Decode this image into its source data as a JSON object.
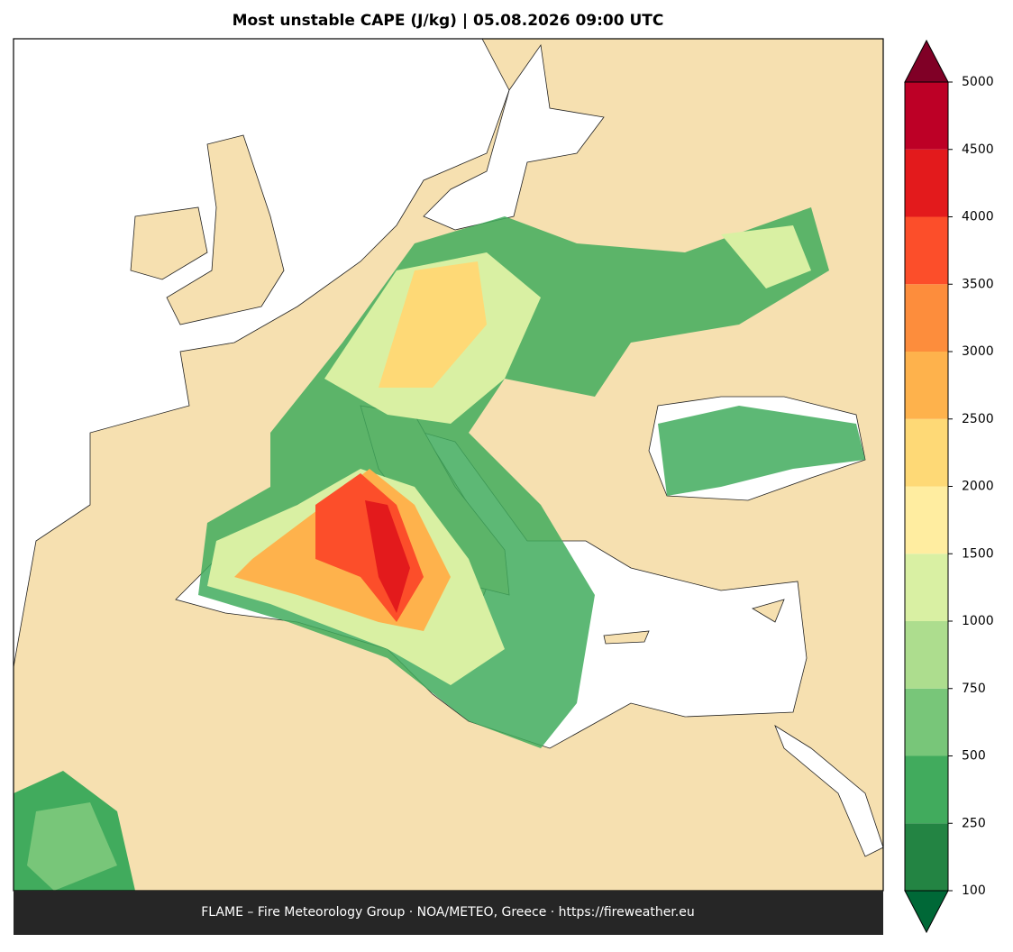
{
  "title": "Most unstable CAPE (J/kg)  |  05.08.2026 09:00 UTC",
  "footer": "FLAME – Fire Meteorology Group · NOA/METEO, Greece · https://fireweather.eu",
  "colorbar": {
    "levels": [
      100,
      250,
      500,
      750,
      1000,
      1500,
      2000,
      2500,
      3000,
      3500,
      4000,
      4500,
      5000
    ],
    "colors": [
      "#238443",
      "#41ab5d",
      "#78c679",
      "#addd8e",
      "#d9f0a3",
      "#ffeda0",
      "#fed976",
      "#feb24c",
      "#fd8d3c",
      "#fc4e2a",
      "#e31a1c",
      "#bd0026"
    ],
    "under_color": "#006837",
    "over_color": "#800026"
  }
}
